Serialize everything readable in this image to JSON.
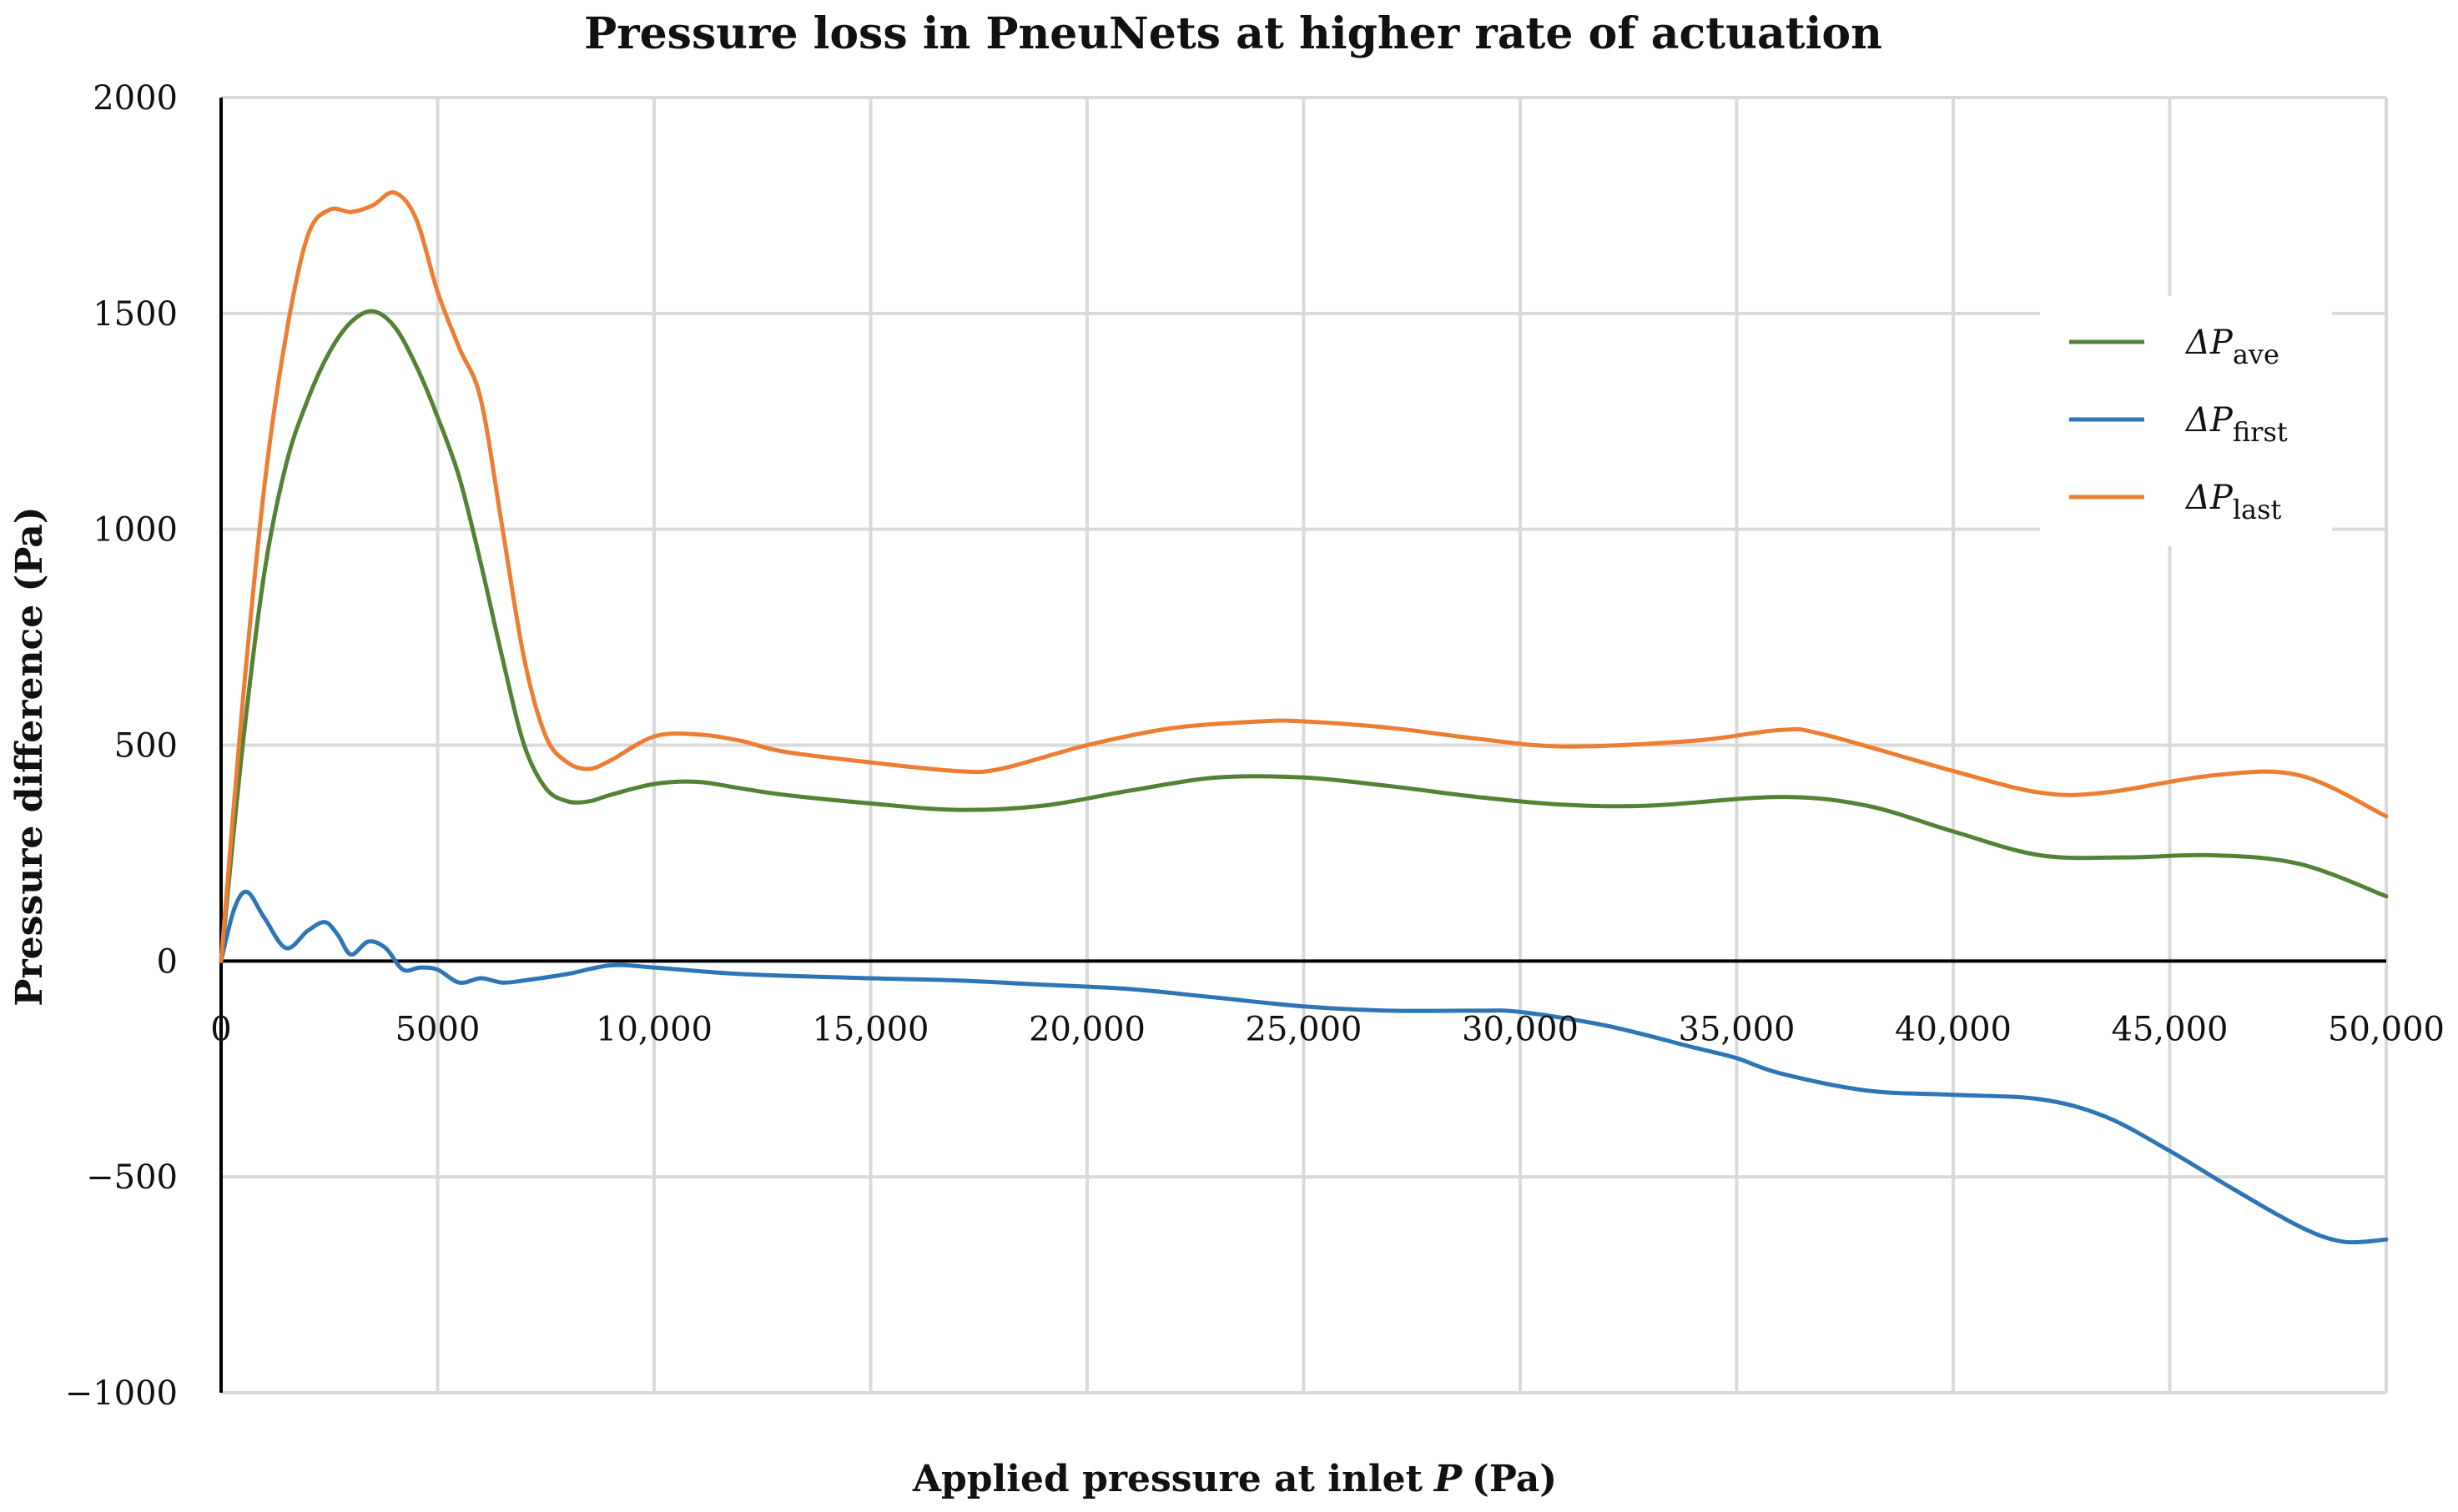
{
  "chart_data": {
    "type": "line",
    "title": "Pressure loss in PneuNets at higher rate of actuation",
    "xlabel": "Applied pressure at inlet",
    "xlabel_var": "P",
    "xlabel_unit": "(Pa)",
    "ylabel": "Pressure difference (Pa)",
    "xlim": [
      0,
      50000
    ],
    "ylim": [
      -1000,
      2000
    ],
    "x_ticks": [
      0,
      5000,
      10000,
      15000,
      20000,
      25000,
      30000,
      35000,
      40000,
      45000,
      50000
    ],
    "x_tick_labels": [
      "0",
      "5000",
      "10,000",
      "15,000",
      "20,000",
      "25,000",
      "30,000",
      "35,000",
      "40,000",
      "45,000",
      "50,000"
    ],
    "y_ticks": [
      -1000,
      -500,
      0,
      500,
      1000,
      1500,
      2000
    ],
    "y_tick_labels": [
      "−1000",
      "−500",
      "0",
      "500",
      "1000",
      "1500",
      "2000"
    ],
    "grid": true,
    "legend_position": "right",
    "series": [
      {
        "name": "ΔP",
        "subscript": "ave",
        "color": "#548235",
        "x": [
          0,
          500,
          1000,
          1500,
          2000,
          2500,
          3000,
          3500,
          4000,
          4500,
          5000,
          5500,
          6000,
          6500,
          7000,
          7500,
          8000,
          8500,
          9000,
          10000,
          11000,
          12000,
          13000,
          15000,
          17000,
          19000,
          21000,
          23000,
          25000,
          27000,
          29000,
          31000,
          33000,
          36000,
          38000,
          40000,
          42000,
          44000,
          46000,
          48000,
          50000
        ],
        "y": [
          0,
          500,
          900,
          1150,
          1300,
          1410,
          1480,
          1505,
          1470,
          1380,
          1260,
          1120,
          920,
          700,
          500,
          400,
          370,
          370,
          385,
          410,
          415,
          400,
          385,
          365,
          350,
          360,
          395,
          425,
          425,
          405,
          380,
          362,
          360,
          380,
          360,
          300,
          245,
          240,
          245,
          225,
          150
        ]
      },
      {
        "name": "ΔP",
        "subscript": "first",
        "color": "#2e75b6",
        "x": [
          0,
          300,
          600,
          1000,
          1500,
          2000,
          2400,
          2700,
          3000,
          3400,
          3800,
          4200,
          4600,
          5000,
          5500,
          6000,
          6500,
          7000,
          8000,
          9000,
          10000,
          12000,
          15000,
          17000,
          19000,
          21000,
          23000,
          25000,
          27000,
          29000,
          30000,
          32000,
          34000,
          35000,
          36000,
          38000,
          40000,
          42000,
          43500,
          45000,
          46500,
          48000,
          49000,
          50000
        ],
        "y": [
          0,
          120,
          160,
          100,
          30,
          70,
          90,
          60,
          15,
          45,
          30,
          -20,
          -15,
          -20,
          -50,
          -40,
          -50,
          -45,
          -30,
          -10,
          -15,
          -30,
          -40,
          -45,
          -55,
          -65,
          -85,
          -105,
          -115,
          -115,
          -118,
          -150,
          -200,
          -225,
          -260,
          -300,
          -310,
          -320,
          -360,
          -440,
          -530,
          -615,
          -650,
          -645
        ]
      },
      {
        "name": "ΔP",
        "subscript": "last",
        "color": "#ed7d31",
        "x": [
          0,
          500,
          1000,
          1500,
          2000,
          2500,
          3000,
          3500,
          4000,
          4500,
          5000,
          5500,
          6000,
          6500,
          7000,
          7500,
          8000,
          8500,
          9000,
          10000,
          11000,
          12000,
          13000,
          15000,
          17000,
          18000,
          20000,
          22000,
          24000,
          25000,
          27000,
          29000,
          31000,
          34000,
          36000,
          37000,
          40000,
          42000,
          43500,
          46000,
          48000,
          50000
        ],
        "y": [
          0,
          600,
          1100,
          1450,
          1680,
          1740,
          1735,
          1750,
          1780,
          1720,
          1550,
          1420,
          1300,
          1000,
          700,
          520,
          460,
          445,
          465,
          520,
          525,
          510,
          485,
          460,
          440,
          445,
          500,
          540,
          555,
          555,
          540,
          515,
          497,
          510,
          535,
          525,
          440,
          390,
          390,
          430,
          430,
          335
        ]
      }
    ]
  }
}
